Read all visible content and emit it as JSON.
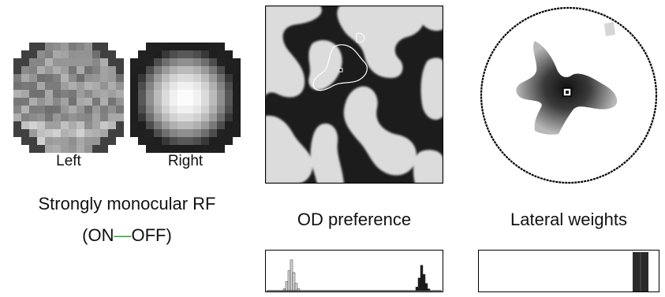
{
  "left_panel": {
    "left_label": "Left",
    "right_label": "Right",
    "caption_line1": "Strongly monocular RF",
    "caption_open": "(ON",
    "caption_dash": "—",
    "caption_close": "OFF)",
    "dash_color": "#2e9e3a"
  },
  "middle_panel": {
    "caption": "OD preference",
    "histogram": {
      "light_bars": [
        0.0,
        0.05,
        0.25,
        0.55,
        0.85,
        0.5,
        0.2,
        0.05
      ],
      "dark_bars": [
        0.0,
        0.1,
        0.35,
        0.7,
        0.45,
        0.2,
        0.05
      ],
      "light_color": "#d8d8d8",
      "dark_color": "#222222"
    }
  },
  "right_panel": {
    "caption": "Lateral weights",
    "histogram": {
      "bar_color": "#2a2a2a"
    }
  }
}
